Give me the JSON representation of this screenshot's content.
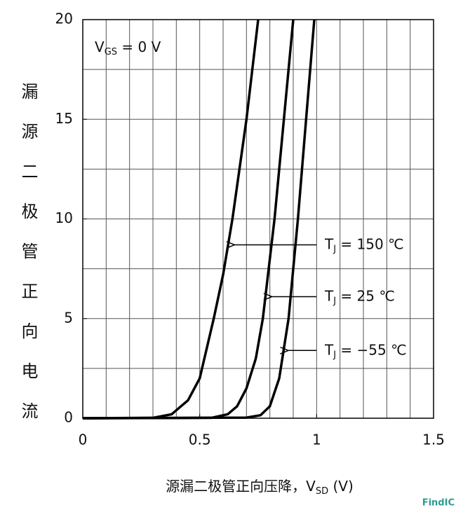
{
  "chart_data": {
    "type": "line",
    "ylabel": "漏源二极管正向电流",
    "xlabel": {
      "text": "源漏二极管正向压降，V",
      "sub": "SD",
      "suffix": " (V)"
    },
    "note": {
      "text": "V",
      "sub": "GS",
      "suffix": " = 0 V"
    },
    "watermark": "FindIC",
    "xlim": [
      0,
      1.5
    ],
    "ylim": [
      0,
      20
    ],
    "xticks": [
      0,
      0.5,
      1,
      1.5
    ],
    "yticks": [
      0,
      5,
      10,
      15,
      20
    ],
    "xgrid": [
      0.1,
      0.2,
      0.3,
      0.4,
      0.5,
      0.6,
      0.7,
      0.8,
      0.9,
      1,
      1.1,
      1.2,
      1.3,
      1.4
    ],
    "ygrid": [
      2.5,
      5,
      7.5,
      10,
      12.5,
      15,
      17.5
    ],
    "color": "#000000",
    "series": [
      {
        "label": {
          "text": "T",
          "sub": "J",
          "suffix": " = 150 ℃"
        },
        "label_at": [
          0.64,
          8.7
        ],
        "x": [
          0,
          0.3,
          0.38,
          0.45,
          0.5,
          0.56,
          0.6,
          0.64,
          0.7,
          0.75
        ],
        "values": [
          0,
          0.02,
          0.2,
          0.9,
          2,
          5,
          7.2,
          10,
          15,
          20
        ]
      },
      {
        "label": {
          "text": "T",
          "sub": "J",
          "suffix": " = 25 ℃"
        },
        "label_at": [
          0.8,
          6.1
        ],
        "x": [
          0,
          0.55,
          0.62,
          0.66,
          0.7,
          0.74,
          0.77,
          0.82,
          0.86,
          0.9
        ],
        "values": [
          0,
          0.02,
          0.2,
          0.6,
          1.5,
          3,
          5,
          10,
          15,
          20
        ]
      },
      {
        "label": {
          "text": "T",
          "sub": "J",
          "suffix": " = −55 ℃"
        },
        "label_at": [
          0.87,
          3.4
        ],
        "x": [
          0,
          0.7,
          0.76,
          0.8,
          0.84,
          0.88,
          0.92,
          0.955,
          0.99
        ],
        "values": [
          0,
          0.03,
          0.15,
          0.6,
          2,
          5,
          10,
          15,
          20
        ]
      }
    ]
  }
}
